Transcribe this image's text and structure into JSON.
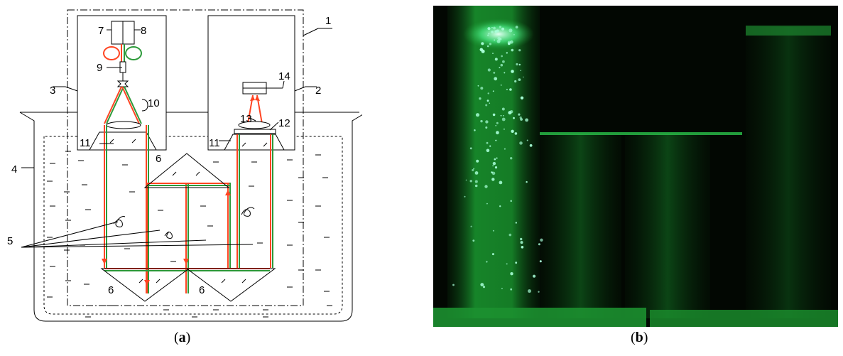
{
  "panel_a": {
    "caption_open": "(",
    "caption_letter": "a",
    "caption_close": ")",
    "labels": {
      "l1": "1",
      "l2": "2",
      "l3": "3",
      "l4": "4",
      "l5": "5",
      "l6a": "6",
      "l6b": "6",
      "l6c": "6",
      "l7": "7",
      "l8": "8",
      "l9": "9",
      "l10": "10",
      "l11a": "11",
      "l11b": "11",
      "l12": "12",
      "l13": "13",
      "l14": "14"
    },
    "colors": {
      "red_beam": "#ff4422",
      "green_beam": "#2d9a3a"
    }
  },
  "panel_b": {
    "caption_open": "(",
    "caption_letter": "b",
    "caption_close": ")",
    "colors": {
      "background": "#020702",
      "laser_green": "#1fd24a",
      "particles": "#a8ffd8"
    }
  }
}
